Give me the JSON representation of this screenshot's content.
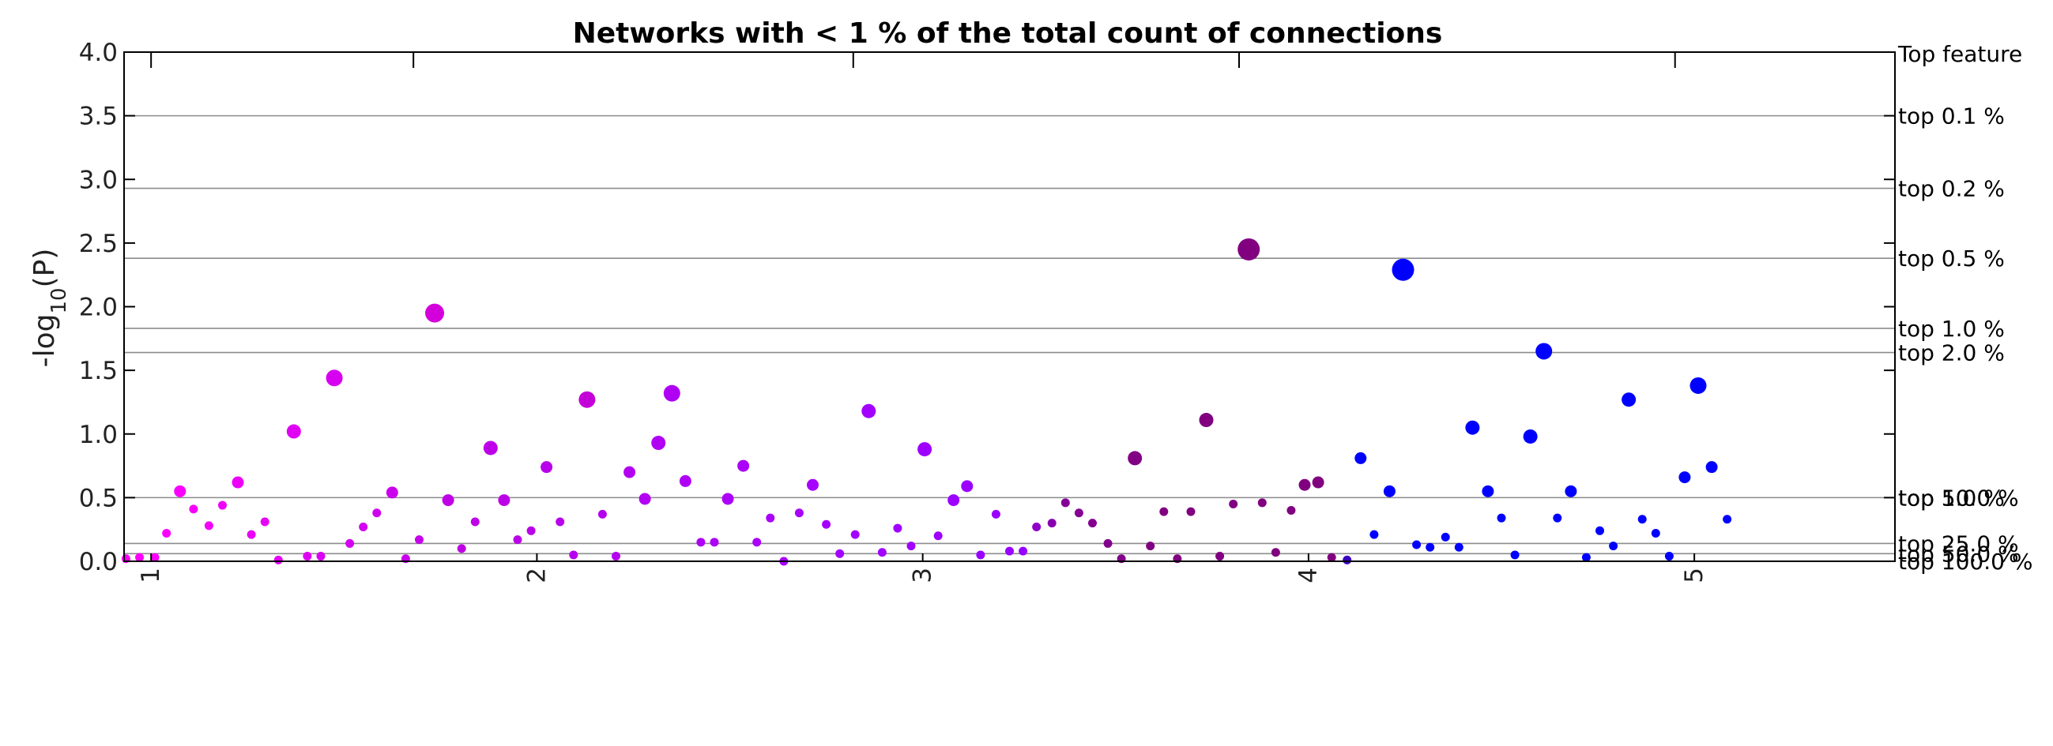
{
  "chart_data": {
    "type": "scatter",
    "title": "Networks with < 1 % of the total count of connections",
    "ylabel_base": "-log",
    "ylabel_sub": "10",
    "ylabel_rest": "(P)",
    "xlim": [
      0.93,
      5.52
    ],
    "ylim": [
      0,
      4
    ],
    "x_ticks": [
      {
        "label": "1",
        "x": 1
      },
      {
        "label": "2",
        "x": 2
      },
      {
        "label": "3",
        "x": 3
      },
      {
        "label": "4",
        "x": 4
      },
      {
        "label": "5",
        "x": 5
      }
    ],
    "x_tickmarks_top": [
      1.0,
      1.68,
      2.82,
      3.82,
      4.95
    ],
    "y_ticks": [
      {
        "label": "0.0",
        "y": 0
      },
      {
        "label": "0.5",
        "y": 0.5
      },
      {
        "label": "1.0",
        "y": 1.0
      },
      {
        "label": "1.5",
        "y": 1.5
      },
      {
        "label": "2.0",
        "y": 2.0
      },
      {
        "label": "2.5",
        "y": 2.5
      },
      {
        "label": "3.0",
        "y": 3.0
      },
      {
        "label": "3.5",
        "y": 3.5
      },
      {
        "label": "4.0",
        "y": 4.0
      }
    ],
    "right_header": "Top feature",
    "thresholds": [
      {
        "label": "top   0.1 %",
        "y": 3.5
      },
      {
        "label": "top   0.2 %",
        "y": 2.93
      },
      {
        "label": "top   0.5 %",
        "y": 2.38
      },
      {
        "label": "top   1.0 %",
        "y": 1.83
      },
      {
        "label": "top   2.0 %",
        "y": 1.64
      },
      {
        "label": "top   5.0 %",
        "y": 0.5
      },
      {
        "label": "top  10.0 %",
        "y": 0.5
      },
      {
        "label": "top  25.0 %",
        "y": 0.14
      },
      {
        "label": "top  50.0 %",
        "y": 0.06
      },
      {
        "label": "top 100.0 %",
        "y": 0.0
      }
    ],
    "points": [
      {
        "x": 0.935,
        "y": 0.02,
        "s": 1,
        "c": "#ff00ff"
      },
      {
        "x": 0.97,
        "y": 0.03,
        "s": 1,
        "c": "#ff00ff"
      },
      {
        "x": 1.01,
        "y": 0.03,
        "s": 1,
        "c": "#fb00fd"
      },
      {
        "x": 1.04,
        "y": 0.22,
        "s": 1,
        "c": "#fb00fd"
      },
      {
        "x": 1.075,
        "y": 0.55,
        "s": 2,
        "c": "#f800fc"
      },
      {
        "x": 1.11,
        "y": 0.41,
        "s": 1,
        "c": "#f500fb"
      },
      {
        "x": 1.15,
        "y": 0.28,
        "s": 1,
        "c": "#f200fa"
      },
      {
        "x": 1.185,
        "y": 0.44,
        "s": 1,
        "c": "#ef00f9"
      },
      {
        "x": 1.225,
        "y": 0.62,
        "s": 2,
        "c": "#ec00f8"
      },
      {
        "x": 1.26,
        "y": 0.21,
        "s": 1,
        "c": "#e900f7"
      },
      {
        "x": 1.295,
        "y": 0.31,
        "s": 1,
        "c": "#e600f6"
      },
      {
        "x": 1.33,
        "y": 0.01,
        "s": 1,
        "c": "#e300f5"
      },
      {
        "x": 1.37,
        "y": 1.02,
        "s": 3,
        "c": "#e000f4"
      },
      {
        "x": 1.405,
        "y": 0.04,
        "s": 1,
        "c": "#dd00f3"
      },
      {
        "x": 1.44,
        "y": 0.04,
        "s": 1,
        "c": "#da00f2"
      },
      {
        "x": 1.475,
        "y": 1.44,
        "s": 4,
        "c": "#d700f1"
      },
      {
        "x": 1.515,
        "y": 0.14,
        "s": 1,
        "c": "#d400f0"
      },
      {
        "x": 1.55,
        "y": 0.27,
        "s": 1,
        "c": "#d100ef"
      },
      {
        "x": 1.585,
        "y": 0.38,
        "s": 1,
        "c": "#ce00ee"
      },
      {
        "x": 1.625,
        "y": 0.54,
        "s": 2,
        "c": "#cb00ed"
      },
      {
        "x": 1.66,
        "y": 0.02,
        "s": 1,
        "c": "#c800ec"
      },
      {
        "x": 1.695,
        "y": 0.17,
        "s": 1,
        "c": "#c500eb"
      },
      {
        "x": 1.735,
        "y": 1.95,
        "s": 5,
        "c": "#d400dc"
      },
      {
        "x": 1.77,
        "y": 0.48,
        "s": 2,
        "c": "#c000e6"
      },
      {
        "x": 1.805,
        "y": 0.1,
        "s": 1,
        "c": "#bf00e5"
      },
      {
        "x": 1.84,
        "y": 0.31,
        "s": 1,
        "c": "#be00e6"
      },
      {
        "x": 1.88,
        "y": 0.89,
        "s": 3,
        "c": "#bd00e7"
      },
      {
        "x": 1.915,
        "y": 0.48,
        "s": 2,
        "c": "#bc00e8"
      },
      {
        "x": 1.95,
        "y": 0.17,
        "s": 1,
        "c": "#bb00e9"
      },
      {
        "x": 1.985,
        "y": 0.24,
        "s": 1,
        "c": "#ba00ea"
      },
      {
        "x": 2.025,
        "y": 0.74,
        "s": 2,
        "c": "#b900eb"
      },
      {
        "x": 2.06,
        "y": 0.31,
        "s": 1,
        "c": "#b800ec"
      },
      {
        "x": 2.095,
        "y": 0.05,
        "s": 1,
        "c": "#b700ed"
      },
      {
        "x": 2.13,
        "y": 1.27,
        "s": 4,
        "c": "#c400d8"
      },
      {
        "x": 2.17,
        "y": 0.37,
        "s": 1,
        "c": "#b500ef"
      },
      {
        "x": 2.205,
        "y": 0.04,
        "s": 1,
        "c": "#b400f0"
      },
      {
        "x": 2.24,
        "y": 0.7,
        "s": 2,
        "c": "#b300f1"
      },
      {
        "x": 2.28,
        "y": 0.49,
        "s": 2,
        "c": "#b200f2"
      },
      {
        "x": 2.315,
        "y": 0.93,
        "s": 3,
        "c": "#b100f3"
      },
      {
        "x": 2.35,
        "y": 1.32,
        "s": 4,
        "c": "#b000f4"
      },
      {
        "x": 2.385,
        "y": 0.63,
        "s": 2,
        "c": "#af00f5"
      },
      {
        "x": 2.425,
        "y": 0.15,
        "s": 1,
        "c": "#ae00f6"
      },
      {
        "x": 2.46,
        "y": 0.15,
        "s": 1,
        "c": "#ad00f7"
      },
      {
        "x": 2.495,
        "y": 0.49,
        "s": 2,
        "c": "#ac00f8"
      },
      {
        "x": 2.535,
        "y": 0.75,
        "s": 2,
        "c": "#ab00f9"
      },
      {
        "x": 2.57,
        "y": 0.15,
        "s": 1,
        "c": "#aa00fa"
      },
      {
        "x": 2.605,
        "y": 0.34,
        "s": 1,
        "c": "#a900fb"
      },
      {
        "x": 2.64,
        "y": 0.0,
        "s": 1,
        "c": "#a800fc"
      },
      {
        "x": 2.68,
        "y": 0.38,
        "s": 1,
        "c": "#a700fd"
      },
      {
        "x": 2.715,
        "y": 0.6,
        "s": 2,
        "c": "#a600fe"
      },
      {
        "x": 2.75,
        "y": 0.29,
        "s": 1,
        "c": "#a500ff"
      },
      {
        "x": 2.785,
        "y": 0.06,
        "s": 1,
        "c": "#a400ff"
      },
      {
        "x": 2.825,
        "y": 0.21,
        "s": 1,
        "c": "#a300ff"
      },
      {
        "x": 2.86,
        "y": 1.18,
        "s": 3,
        "c": "#a200ff"
      },
      {
        "x": 2.895,
        "y": 0.07,
        "s": 1,
        "c": "#a100ff"
      },
      {
        "x": 2.935,
        "y": 0.26,
        "s": 1,
        "c": "#a000ff"
      },
      {
        "x": 2.97,
        "y": 0.12,
        "s": 1,
        "c": "#9f00ff"
      },
      {
        "x": 3.005,
        "y": 0.88,
        "s": 3,
        "c": "#9e00ff"
      },
      {
        "x": 3.04,
        "y": 0.2,
        "s": 1,
        "c": "#9d00ff"
      },
      {
        "x": 3.08,
        "y": 0.48,
        "s": 2,
        "c": "#9c00ff"
      },
      {
        "x": 3.115,
        "y": 0.59,
        "s": 2,
        "c": "#9b00ff"
      },
      {
        "x": 3.15,
        "y": 0.05,
        "s": 1,
        "c": "#9a00ff"
      },
      {
        "x": 3.19,
        "y": 0.37,
        "s": 1,
        "c": "#9900ff"
      },
      {
        "x": 3.225,
        "y": 0.08,
        "s": 1,
        "c": "#9800ff"
      },
      {
        "x": 3.26,
        "y": 0.08,
        "s": 1,
        "c": "#9700ff"
      },
      {
        "x": 3.295,
        "y": 0.27,
        "s": 1,
        "c": "#8e00c8"
      },
      {
        "x": 3.335,
        "y": 0.3,
        "s": 1,
        "c": "#8a00b0"
      },
      {
        "x": 3.37,
        "y": 0.46,
        "s": 1,
        "c": "#860098"
      },
      {
        "x": 3.405,
        "y": 0.38,
        "s": 1,
        "c": "#850094"
      },
      {
        "x": 3.44,
        "y": 0.3,
        "s": 1,
        "c": "#840090"
      },
      {
        "x": 3.48,
        "y": 0.14,
        "s": 1,
        "c": "#83008c"
      },
      {
        "x": 3.515,
        "y": 0.02,
        "s": 1,
        "c": "#820088"
      },
      {
        "x": 3.55,
        "y": 0.81,
        "s": 3,
        "c": "#810084"
      },
      {
        "x": 3.59,
        "y": 0.12,
        "s": 1,
        "c": "#800080"
      },
      {
        "x": 3.625,
        "y": 0.39,
        "s": 1,
        "c": "#800080"
      },
      {
        "x": 3.66,
        "y": 0.02,
        "s": 1,
        "c": "#800080"
      },
      {
        "x": 3.695,
        "y": 0.39,
        "s": 1,
        "c": "#800080"
      },
      {
        "x": 3.735,
        "y": 1.11,
        "s": 3,
        "c": "#800080"
      },
      {
        "x": 3.77,
        "y": 0.04,
        "s": 1,
        "c": "#800080"
      },
      {
        "x": 3.805,
        "y": 0.45,
        "s": 1,
        "c": "#800080"
      },
      {
        "x": 3.845,
        "y": 2.45,
        "s": 6,
        "c": "#800080"
      },
      {
        "x": 3.88,
        "y": 0.46,
        "s": 1,
        "c": "#800080"
      },
      {
        "x": 3.915,
        "y": 0.07,
        "s": 1,
        "c": "#800080"
      },
      {
        "x": 3.955,
        "y": 0.4,
        "s": 1,
        "c": "#800080"
      },
      {
        "x": 3.99,
        "y": 0.6,
        "s": 2,
        "c": "#800080"
      },
      {
        "x": 4.025,
        "y": 0.62,
        "s": 2,
        "c": "#800080"
      },
      {
        "x": 4.06,
        "y": 0.03,
        "s": 1,
        "c": "#800080"
      },
      {
        "x": 4.1,
        "y": 0.01,
        "s": 1,
        "c": "#3a00c0"
      },
      {
        "x": 4.135,
        "y": 0.81,
        "s": 2,
        "c": "#0000ff"
      },
      {
        "x": 4.17,
        "y": 0.21,
        "s": 1,
        "c": "#0000ff"
      },
      {
        "x": 4.21,
        "y": 0.55,
        "s": 2,
        "c": "#0000ff"
      },
      {
        "x": 4.245,
        "y": 2.29,
        "s": 6,
        "c": "#0000ff"
      },
      {
        "x": 4.28,
        "y": 0.13,
        "s": 1,
        "c": "#0000ff"
      },
      {
        "x": 4.315,
        "y": 0.11,
        "s": 1,
        "c": "#0000ff"
      },
      {
        "x": 4.355,
        "y": 0.19,
        "s": 1,
        "c": "#0000ff"
      },
      {
        "x": 4.39,
        "y": 0.11,
        "s": 1,
        "c": "#0000ff"
      },
      {
        "x": 4.425,
        "y": 1.05,
        "s": 3,
        "c": "#0000ff"
      },
      {
        "x": 4.465,
        "y": 0.55,
        "s": 2,
        "c": "#0000ff"
      },
      {
        "x": 4.5,
        "y": 0.34,
        "s": 1,
        "c": "#0000ff"
      },
      {
        "x": 4.535,
        "y": 0.05,
        "s": 1,
        "c": "#0000ff"
      },
      {
        "x": 4.575,
        "y": 0.98,
        "s": 3,
        "c": "#0000ff"
      },
      {
        "x": 4.61,
        "y": 1.65,
        "s": 4,
        "c": "#0000ff"
      },
      {
        "x": 4.645,
        "y": 0.34,
        "s": 1,
        "c": "#0000ff"
      },
      {
        "x": 4.68,
        "y": 0.55,
        "s": 2,
        "c": "#0000ff"
      },
      {
        "x": 4.72,
        "y": 0.03,
        "s": 1,
        "c": "#0000ff"
      },
      {
        "x": 4.755,
        "y": 0.24,
        "s": 1,
        "c": "#0000ff"
      },
      {
        "x": 4.79,
        "y": 0.12,
        "s": 1,
        "c": "#0000ff"
      },
      {
        "x": 4.83,
        "y": 1.27,
        "s": 3,
        "c": "#0000ff"
      },
      {
        "x": 4.865,
        "y": 0.33,
        "s": 1,
        "c": "#0000ff"
      },
      {
        "x": 4.9,
        "y": 0.22,
        "s": 1,
        "c": "#0000ff"
      },
      {
        "x": 4.935,
        "y": 0.04,
        "s": 1,
        "c": "#0000ff"
      },
      {
        "x": 4.975,
        "y": 0.66,
        "s": 2,
        "c": "#0000ff"
      },
      {
        "x": 5.01,
        "y": 1.38,
        "s": 4,
        "c": "#0000ff"
      },
      {
        "x": 5.045,
        "y": 0.74,
        "s": 2,
        "c": "#0000ff"
      },
      {
        "x": 5.085,
        "y": 0.33,
        "s": 1,
        "c": "#0000ff"
      }
    ]
  }
}
